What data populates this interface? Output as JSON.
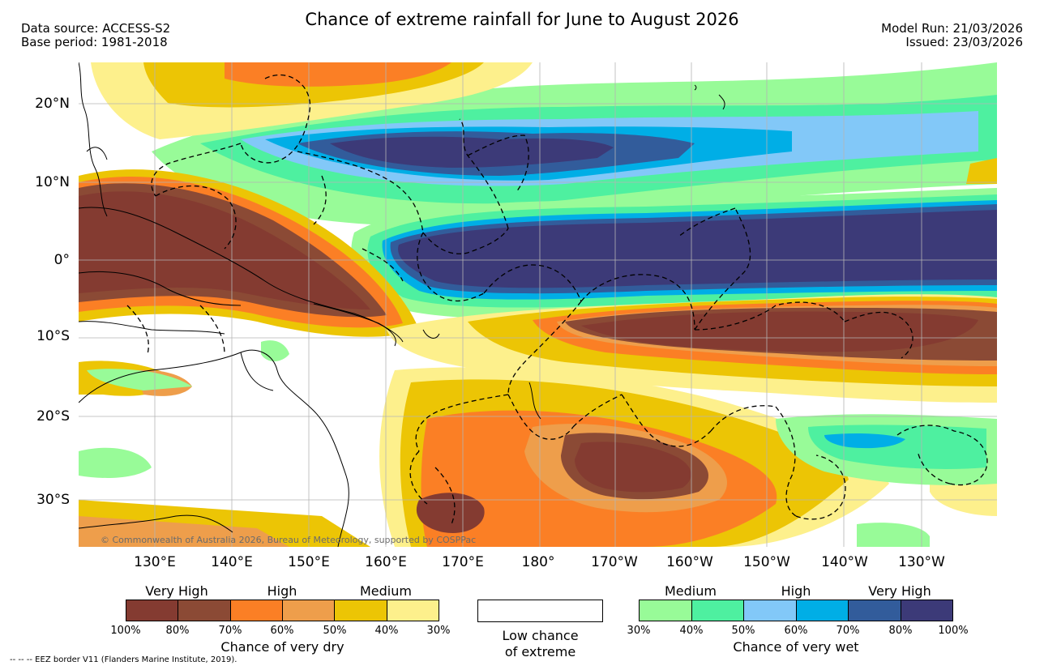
{
  "header": {
    "title": "Chance of extreme rainfall for June to August 2026",
    "data_source": "Data source: ACCESS-S2",
    "base_period": "Base period: 1981-2018",
    "model_run": "Model Run: 21/03/2026",
    "issued": "Issued: 23/03/2026"
  },
  "map": {
    "lat_labels": [
      "20°N",
      "10°N",
      "0°",
      "10°S",
      "20°S",
      "30°S"
    ],
    "lon_labels": [
      "130°E",
      "140°E",
      "150°E",
      "160°E",
      "170°E",
      "180°",
      "170°W",
      "160°W",
      "150°W",
      "140°W",
      "130°W"
    ],
    "copyright": "© Commonwealth of Australia 2026, Bureau of Meteorology, supported by COSPPac"
  },
  "legend": {
    "dry": {
      "top_labels": [
        "Very High",
        "High",
        "Medium"
      ],
      "ticks": [
        "100%",
        "80%",
        "70%",
        "60%",
        "50%",
        "40%",
        "30%"
      ],
      "title": "Chance of very dry",
      "colors": [
        "#843b31",
        "#8b4a35",
        "#fb7f25",
        "#ee9e4b",
        "#ecc505",
        "#fdf08c"
      ]
    },
    "low": {
      "line1": "Low chance",
      "line2": "of extreme"
    },
    "wet": {
      "top_labels": [
        "Medium",
        "High",
        "Very High"
      ],
      "ticks": [
        "30%",
        "40%",
        "50%",
        "60%",
        "70%",
        "80%",
        "100%"
      ],
      "title": "Chance of very wet",
      "colors": [
        "#98fb98",
        "#4ef0a0",
        "#82c8f8",
        "#00aee6",
        "#325c9b",
        "#3c3a78"
      ]
    }
  },
  "footer": {
    "eez_note": "--  --  -- EEZ border V11 (Flanders Marine Institute, 2019)."
  },
  "palette": {
    "vdry": "#843b31",
    "vdry2": "#8b4a35",
    "hdry": "#fb7f25",
    "hdry2": "#ee9e4b",
    "mdry": "#ecc505",
    "mdry2": "#fdf08c",
    "mwet": "#98fb98",
    "mwet2": "#4ef0a0",
    "hwet": "#82c8f8",
    "hwet2": "#00aee6",
    "vwet": "#325c9b",
    "vwet2": "#3c3a78"
  }
}
